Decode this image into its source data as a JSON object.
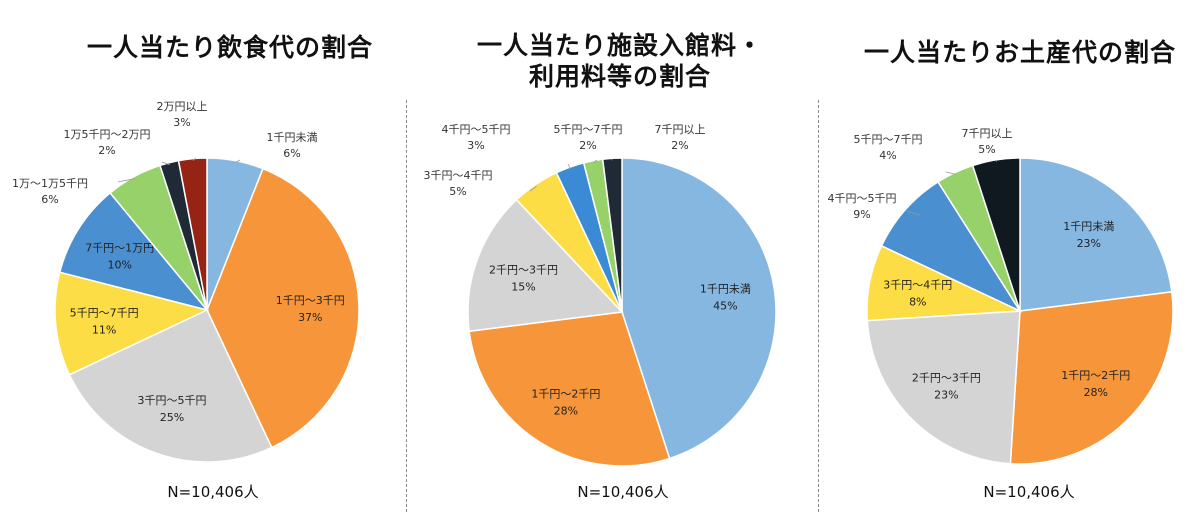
{
  "chart_data": [
    {
      "type": "pie",
      "title": "一人当たり飲食代の割合",
      "n_label": "N=10,406人",
      "slices": [
        {
          "label": "1千円未満",
          "value": 6,
          "pct": "6%",
          "color": "#85b7e1",
          "placement": "outside"
        },
        {
          "label": "1千円～3千円",
          "value": 37,
          "pct": "37%",
          "color": "#f6953a",
          "placement": "inside"
        },
        {
          "label": "3千円～5千円",
          "value": 25,
          "pct": "25%",
          "color": "#d4d4d4",
          "placement": "inside"
        },
        {
          "label": "5千円～7千円",
          "value": 11,
          "pct": "11%",
          "color": "#fddd45",
          "placement": "inside"
        },
        {
          "label": "7千円～1万円",
          "value": 10,
          "pct": "10%",
          "color": "#4a8fd0",
          "placement": "inside"
        },
        {
          "label": "1万～1万5千円",
          "value": 6,
          "pct": "6%",
          "color": "#97d16a",
          "placement": "outside"
        },
        {
          "label": "1万5千円～2万円",
          "value": 2,
          "pct": "2%",
          "color": "#1f2a36",
          "placement": "outside"
        },
        {
          "label": "2万円以上",
          "value": 3,
          "pct": "3%",
          "color": "#962414",
          "placement": "outside"
        }
      ]
    },
    {
      "type": "pie",
      "title": "一人当たり施設入館料・利用料等の割合",
      "title_lines": [
        "一人当たり施設入館料・",
        "利用料等の割合"
      ],
      "n_label": "N=10,406人",
      "slices": [
        {
          "label": "1千円未満",
          "value": 45,
          "pct": "45%",
          "color": "#85b7e1",
          "placement": "inside"
        },
        {
          "label": "1千円～2千円",
          "value": 28,
          "pct": "28%",
          "color": "#f6953a",
          "placement": "inside"
        },
        {
          "label": "2千円～3千円",
          "value": 15,
          "pct": "15%",
          "color": "#d4d4d4",
          "placement": "inside"
        },
        {
          "label": "3千円～4千円",
          "value": 5,
          "pct": "5%",
          "color": "#fddd45",
          "placement": "outside"
        },
        {
          "label": "4千円～5千円",
          "value": 3,
          "pct": "3%",
          "color": "#3a8ad6",
          "placement": "outside"
        },
        {
          "label": "5千円～7千円",
          "value": 2,
          "pct": "2%",
          "color": "#97d16a",
          "placement": "outside"
        },
        {
          "label": "7千円以上",
          "value": 2,
          "pct": "2%",
          "color": "#1f2a36",
          "placement": "outside"
        }
      ]
    },
    {
      "type": "pie",
      "title": "一人当たりお土産代の割合",
      "n_label": "N=10,406人",
      "slices": [
        {
          "label": "1千円未満",
          "value": 23,
          "pct": "23%",
          "color": "#85b7e1",
          "placement": "inside"
        },
        {
          "label": "1千円～2千円",
          "value": 28,
          "pct": "28%",
          "color": "#f6953a",
          "placement": "inside"
        },
        {
          "label": "2千円～3千円",
          "value": 23,
          "pct": "23%",
          "color": "#d4d4d4",
          "placement": "inside"
        },
        {
          "label": "3千円～4千円",
          "value": 8,
          "pct": "8%",
          "color": "#fddd45",
          "placement": "inside"
        },
        {
          "label": "4千円～5千円",
          "value": 9,
          "pct": "9%",
          "color": "#4a8fd0",
          "placement": "outside"
        },
        {
          "label": "5千円～7千円",
          "value": 4,
          "pct": "4%",
          "color": "#97d16a",
          "placement": "outside"
        },
        {
          "label": "7千円以上",
          "value": 5,
          "pct": "5%",
          "color": "#101820",
          "placement": "outside"
        }
      ]
    }
  ]
}
